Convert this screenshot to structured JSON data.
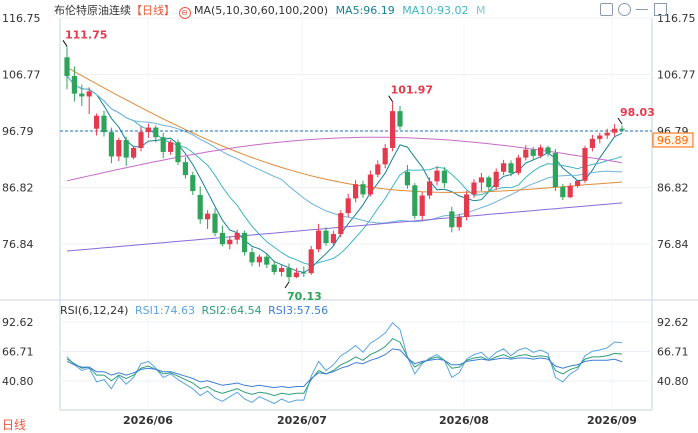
{
  "header": {
    "title": "布伦特原油连续",
    "period": "【日线】",
    "ma_label": "MA(5,10,30,60,100,200)",
    "ma5": "MA5:96.19",
    "ma10": "MA10:93.02",
    "m": "M",
    "toolbar_icons": [
      "toggle-icon",
      "settings-icon",
      "minimize-icon",
      "expand-icon"
    ]
  },
  "rsi_header": {
    "label": "RSI(6,12,24)",
    "rsi1": "RSI1:74.63",
    "rsi2": "RSI2:64.54",
    "rsi3": "RSI3:57.56"
  },
  "footer": {
    "brand": "日线"
  },
  "colors": {
    "up": "#e23b4d",
    "down": "#2ea35b",
    "ma5": "#17819b",
    "ma10": "#3db7c4",
    "ma30": "#6fb3d9",
    "ma60": "#e08a3a",
    "ma100": "#c66cc8",
    "ma200": "#8a6ad9",
    "rsi1": "#5aa4e0",
    "rsi2": "#2f9e79",
    "rsi3": "#3d7fd6",
    "last": "#ff6a00",
    "dash": "#1e6fb3"
  },
  "chart_data": {
    "type": "candlestick",
    "y_ticks": [
      116.75,
      106.77,
      96.79,
      86.82,
      76.84
    ],
    "ylim": [
      70.13,
      116.75
    ],
    "x_labels": [
      "2026/06",
      "2026/07",
      "2026/08",
      "2026/09"
    ],
    "annotations": {
      "high_1": 111.75,
      "low": 70.13,
      "high_2": 101.97,
      "last": 98.03
    },
    "reference_line": 96.79,
    "last_price_tag": "96.89",
    "ma_latest": {
      "MA5": 96.19,
      "MA10": 93.02
    },
    "candles": [
      {
        "o": 109.8,
        "h": 111.75,
        "l": 104.2,
        "c": 106.5
      },
      {
        "o": 106.5,
        "h": 108.2,
        "l": 102.0,
        "c": 103.4
      },
      {
        "o": 103.4,
        "h": 105.0,
        "l": 101.2,
        "c": 102.9
      },
      {
        "o": 102.9,
        "h": 104.5,
        "l": 99.8,
        "c": 103.8
      },
      {
        "o": 97.2,
        "h": 99.9,
        "l": 96.0,
        "c": 99.5
      },
      {
        "o": 99.5,
        "h": 100.4,
        "l": 95.8,
        "c": 96.6
      },
      {
        "o": 96.6,
        "h": 97.4,
        "l": 91.1,
        "c": 92.3
      },
      {
        "o": 92.3,
        "h": 95.6,
        "l": 91.5,
        "c": 95.2
      },
      {
        "o": 95.2,
        "h": 95.8,
        "l": 90.6,
        "c": 92.1
      },
      {
        "o": 92.1,
        "h": 94.2,
        "l": 91.8,
        "c": 93.8
      },
      {
        "o": 93.8,
        "h": 97.6,
        "l": 93.2,
        "c": 96.6
      },
      {
        "o": 96.6,
        "h": 98.1,
        "l": 95.6,
        "c": 97.4
      },
      {
        "o": 97.4,
        "h": 97.8,
        "l": 94.8,
        "c": 95.7
      },
      {
        "o": 95.7,
        "h": 96.5,
        "l": 92.0,
        "c": 93.1
      },
      {
        "o": 93.1,
        "h": 95.2,
        "l": 92.6,
        "c": 94.8
      },
      {
        "o": 94.8,
        "h": 95.3,
        "l": 90.8,
        "c": 91.3
      },
      {
        "o": 91.3,
        "h": 92.2,
        "l": 88.4,
        "c": 89.0
      },
      {
        "o": 89.0,
        "h": 89.6,
        "l": 85.5,
        "c": 86.2
      },
      {
        "o": 85.5,
        "h": 87.0,
        "l": 80.4,
        "c": 81.2
      },
      {
        "o": 81.2,
        "h": 82.8,
        "l": 79.5,
        "c": 82.2
      },
      {
        "o": 82.2,
        "h": 83.1,
        "l": 78.2,
        "c": 78.8
      },
      {
        "o": 78.8,
        "h": 80.1,
        "l": 76.4,
        "c": 76.8
      },
      {
        "o": 76.8,
        "h": 78.2,
        "l": 75.9,
        "c": 77.6
      },
      {
        "o": 77.6,
        "h": 79.4,
        "l": 76.8,
        "c": 78.8
      },
      {
        "o": 78.8,
        "h": 79.2,
        "l": 74.8,
        "c": 75.4
      },
      {
        "o": 75.4,
        "h": 76.2,
        "l": 72.9,
        "c": 73.6
      },
      {
        "o": 73.6,
        "h": 75.0,
        "l": 72.8,
        "c": 74.6
      },
      {
        "o": 74.6,
        "h": 75.2,
        "l": 72.6,
        "c": 73.2
      },
      {
        "o": 73.2,
        "h": 73.9,
        "l": 71.4,
        "c": 71.9
      },
      {
        "o": 71.9,
        "h": 73.1,
        "l": 71.1,
        "c": 72.6
      },
      {
        "o": 72.6,
        "h": 73.4,
        "l": 70.13,
        "c": 71.0
      },
      {
        "o": 71.0,
        "h": 72.6,
        "l": 70.8,
        "c": 71.8
      },
      {
        "o": 71.8,
        "h": 72.9,
        "l": 71.0,
        "c": 71.7
      },
      {
        "o": 71.7,
        "h": 76.5,
        "l": 71.4,
        "c": 75.9
      },
      {
        "o": 75.9,
        "h": 80.4,
        "l": 75.4,
        "c": 79.2
      },
      {
        "o": 79.2,
        "h": 79.8,
        "l": 76.5,
        "c": 77.0
      },
      {
        "o": 77.0,
        "h": 79.2,
        "l": 76.4,
        "c": 78.6
      },
      {
        "o": 78.6,
        "h": 82.8,
        "l": 78.0,
        "c": 82.3
      },
      {
        "o": 82.3,
        "h": 85.7,
        "l": 81.6,
        "c": 84.9
      },
      {
        "o": 84.9,
        "h": 88.1,
        "l": 84.2,
        "c": 87.4
      },
      {
        "o": 87.4,
        "h": 88.0,
        "l": 85.0,
        "c": 85.6
      },
      {
        "o": 85.6,
        "h": 89.8,
        "l": 85.2,
        "c": 89.1
      },
      {
        "o": 89.1,
        "h": 91.6,
        "l": 88.6,
        "c": 90.9
      },
      {
        "o": 90.9,
        "h": 94.5,
        "l": 90.2,
        "c": 93.8
      },
      {
        "o": 93.8,
        "h": 101.97,
        "l": 93.2,
        "c": 100.3
      },
      {
        "o": 100.3,
        "h": 101.2,
        "l": 97.0,
        "c": 97.6
      },
      {
        "o": 89.6,
        "h": 90.8,
        "l": 86.6,
        "c": 87.2
      },
      {
        "o": 87.2,
        "h": 87.6,
        "l": 81.2,
        "c": 81.8
      },
      {
        "o": 81.8,
        "h": 86.0,
        "l": 81.0,
        "c": 85.4
      },
      {
        "o": 85.4,
        "h": 88.6,
        "l": 84.8,
        "c": 87.9
      },
      {
        "o": 87.9,
        "h": 90.6,
        "l": 87.2,
        "c": 89.8
      },
      {
        "o": 89.8,
        "h": 90.4,
        "l": 86.8,
        "c": 87.6
      },
      {
        "o": 82.6,
        "h": 83.4,
        "l": 78.9,
        "c": 79.8
      },
      {
        "o": 79.8,
        "h": 82.2,
        "l": 79.2,
        "c": 81.6
      },
      {
        "o": 81.6,
        "h": 86.2,
        "l": 81.0,
        "c": 85.6
      },
      {
        "o": 85.6,
        "h": 88.3,
        "l": 85.0,
        "c": 87.7
      },
      {
        "o": 87.7,
        "h": 89.4,
        "l": 86.2,
        "c": 88.6
      },
      {
        "o": 88.6,
        "h": 88.9,
        "l": 86.1,
        "c": 86.9
      },
      {
        "o": 86.9,
        "h": 90.2,
        "l": 86.4,
        "c": 89.6
      },
      {
        "o": 89.6,
        "h": 91.7,
        "l": 89.0,
        "c": 91.1
      },
      {
        "o": 91.1,
        "h": 91.6,
        "l": 88.8,
        "c": 89.4
      },
      {
        "o": 89.4,
        "h": 92.6,
        "l": 89.0,
        "c": 92.1
      },
      {
        "o": 92.1,
        "h": 94.3,
        "l": 91.6,
        "c": 93.5
      },
      {
        "o": 93.5,
        "h": 94.0,
        "l": 91.8,
        "c": 92.4
      },
      {
        "o": 92.4,
        "h": 94.4,
        "l": 92.0,
        "c": 93.9
      },
      {
        "o": 93.9,
        "h": 94.2,
        "l": 92.3,
        "c": 92.9
      },
      {
        "o": 92.9,
        "h": 93.6,
        "l": 86.2,
        "c": 86.9
      },
      {
        "o": 86.9,
        "h": 87.4,
        "l": 84.6,
        "c": 85.1
      },
      {
        "o": 85.1,
        "h": 87.6,
        "l": 84.9,
        "c": 87.1
      },
      {
        "o": 87.1,
        "h": 88.2,
        "l": 86.8,
        "c": 88.0
      },
      {
        "o": 88.0,
        "h": 94.2,
        "l": 87.6,
        "c": 93.8
      },
      {
        "o": 93.8,
        "h": 96.1,
        "l": 93.2,
        "c": 95.4
      },
      {
        "o": 95.4,
        "h": 96.5,
        "l": 94.6,
        "c": 96.0
      },
      {
        "o": 96.0,
        "h": 97.2,
        "l": 95.4,
        "c": 96.5
      },
      {
        "o": 96.5,
        "h": 98.03,
        "l": 95.8,
        "c": 97.2
      },
      {
        "o": 97.2,
        "h": 97.8,
        "l": 96.6,
        "c": 96.9
      }
    ],
    "rsi": {
      "y_ticks": [
        92.62,
        66.71,
        40.8
      ],
      "rsi1": [
        62,
        55,
        50,
        52,
        40,
        42,
        34,
        45,
        38,
        44,
        56,
        58,
        52,
        44,
        47,
        42,
        38,
        34,
        28,
        32,
        26,
        23,
        27,
        31,
        25,
        22,
        27,
        24,
        21,
        25,
        22,
        24,
        24,
        45,
        58,
        50,
        55,
        63,
        67,
        72,
        66,
        74,
        78,
        83,
        92,
        86,
        62,
        47,
        56,
        61,
        64,
        59,
        44,
        48,
        60,
        64,
        66,
        60,
        66,
        69,
        63,
        68,
        70,
        66,
        68,
        65,
        44,
        40,
        47,
        51,
        63,
        67,
        68,
        70,
        75,
        74.63
      ],
      "rsi2": [
        60,
        56,
        52,
        53,
        46,
        46,
        41,
        46,
        43,
        46,
        52,
        54,
        51,
        47,
        48,
        45,
        42,
        39,
        34,
        36,
        32,
        30,
        32,
        34,
        31,
        29,
        31,
        30,
        28,
        30,
        29,
        30,
        30,
        42,
        50,
        47,
        50,
        55,
        58,
        62,
        59,
        64,
        67,
        71,
        78,
        75,
        62,
        53,
        57,
        60,
        62,
        59,
        52,
        53,
        59,
        61,
        62,
        59,
        62,
        64,
        61,
        63,
        64,
        62,
        63,
        62,
        50,
        47,
        51,
        53,
        60,
        62,
        62,
        63,
        65,
        64.54
      ],
      "rsi3": [
        58,
        55,
        53,
        53,
        49,
        49,
        46,
        48,
        46,
        48,
        51,
        52,
        51,
        49,
        49,
        47,
        45,
        43,
        40,
        41,
        39,
        37,
        38,
        39,
        37,
        36,
        37,
        36,
        35,
        36,
        35,
        36,
        36,
        43,
        48,
        47,
        49,
        52,
        54,
        57,
        56,
        59,
        61,
        64,
        69,
        68,
        61,
        56,
        58,
        59,
        60,
        59,
        55,
        55,
        58,
        59,
        60,
        59,
        60,
        61,
        60,
        61,
        61,
        60,
        61,
        60,
        54,
        52,
        54,
        55,
        58,
        59,
        59,
        59,
        60,
        57.56
      ]
    }
  }
}
